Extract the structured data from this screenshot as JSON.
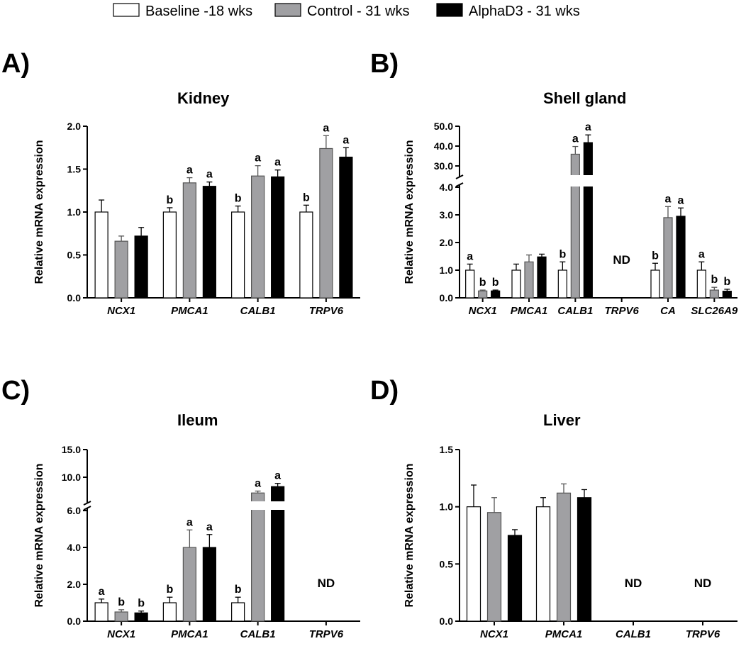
{
  "legend": [
    {
      "label": "Baseline -18 wks",
      "color": "#ffffff"
    },
    {
      "label": "Control - 31 wks",
      "color": "#a0a0a3"
    },
    {
      "label": "AlphaD3 - 31 wks",
      "color": "#000000"
    }
  ],
  "chart_data": [
    {
      "panel": "A)",
      "type": "bar",
      "title": "Kidney",
      "ylabel": "Relative mRNA expression",
      "ylim": [
        0,
        2.0
      ],
      "yticks": [
        "0.0",
        "0.5",
        "1.0",
        "1.5",
        "2.0"
      ],
      "categories": [
        "NCX1",
        "PMCA1",
        "CALB1",
        "TRPV6"
      ],
      "series": [
        {
          "name": "Baseline -18 wks",
          "values": [
            1.0,
            1.0,
            1.0,
            1.0
          ],
          "errors": [
            0.14,
            0.05,
            0.07,
            0.08
          ],
          "letters": [
            "",
            "b",
            "b",
            "b"
          ]
        },
        {
          "name": "Control - 31 wks",
          "values": [
            0.66,
            1.34,
            1.42,
            1.74
          ],
          "errors": [
            0.06,
            0.06,
            0.12,
            0.15
          ],
          "letters": [
            "",
            "a",
            "a",
            "a"
          ]
        },
        {
          "name": "AlphaD3 - 31 wks",
          "values": [
            0.72,
            1.3,
            1.41,
            1.64
          ],
          "errors": [
            0.1,
            0.05,
            0.08,
            0.11
          ],
          "letters": [
            "",
            "a",
            "a",
            "a"
          ]
        }
      ],
      "nd": []
    },
    {
      "panel": "B)",
      "type": "bar",
      "title": "Shell gland",
      "ylabel": "Relative mRNA expression",
      "broken_axis": {
        "lower": [
          0,
          4.0
        ],
        "upper": [
          25.0,
          50.0
        ]
      },
      "yticks": [
        "0.0",
        "1.0",
        "2.0",
        "3.0",
        "4.0",
        "30.0",
        "40.0",
        "50.0"
      ],
      "categories": [
        "NCX1",
        "PMCA1",
        "CALB1",
        "TRPV6",
        "CA",
        "SLC26A9"
      ],
      "series": [
        {
          "name": "Baseline -18 wks",
          "values": [
            1.0,
            1.0,
            1.0,
            null,
            1.0,
            1.0
          ],
          "errors": [
            0.22,
            0.22,
            0.3,
            null,
            0.25,
            0.3
          ],
          "letters": [
            "a",
            "",
            "b",
            "",
            "b",
            "a"
          ]
        },
        {
          "name": "Control - 31 wks",
          "values": [
            0.25,
            1.3,
            35.5,
            null,
            2.9,
            0.28
          ],
          "errors": [
            0.03,
            0.25,
            4.0,
            null,
            0.4,
            0.1
          ],
          "letters": [
            "b",
            "",
            "a",
            "",
            "a",
            "b"
          ]
        },
        {
          "name": "AlphaD3 - 31 wks",
          "values": [
            0.25,
            1.48,
            41.5,
            null,
            2.95,
            0.24
          ],
          "errors": [
            0.03,
            0.1,
            4.0,
            null,
            0.3,
            0.07
          ],
          "letters": [
            "b",
            "",
            "a",
            "",
            "a",
            "b"
          ]
        }
      ],
      "nd": [
        "TRPV6"
      ]
    },
    {
      "panel": "C)",
      "type": "bar",
      "title": "Ileum",
      "ylabel": "Relative mRNA expression",
      "broken_axis": {
        "lower": [
          0,
          6.0
        ],
        "upper": [
          7.0,
          15.0
        ]
      },
      "yticks": [
        "0.0",
        "2.0",
        "4.0",
        "6.0",
        "10.0",
        "15.0"
      ],
      "categories": [
        "NCX1",
        "PMCA1",
        "CALB1",
        "TRPV6"
      ],
      "series": [
        {
          "name": "Baseline -18 wks",
          "values": [
            1.0,
            1.0,
            1.0,
            null
          ],
          "errors": [
            0.2,
            0.3,
            0.3,
            null
          ],
          "letters": [
            "a",
            "b",
            "b",
            ""
          ]
        },
        {
          "name": "Control - 31 wks",
          "values": [
            0.5,
            4.0,
            8.2,
            null
          ],
          "errors": [
            0.12,
            0.95,
            0.3,
            null
          ],
          "letters": [
            "b",
            "a",
            "a",
            ""
          ]
        },
        {
          "name": "AlphaD3 - 31 wks",
          "values": [
            0.45,
            4.0,
            9.2,
            null
          ],
          "errors": [
            0.1,
            0.7,
            0.5,
            null
          ],
          "letters": [
            "b",
            "a",
            "a",
            ""
          ]
        }
      ],
      "nd": [
        "TRPV6"
      ]
    },
    {
      "panel": "D)",
      "type": "bar",
      "title": "Liver",
      "ylabel": "Relative mRNA expression",
      "ylim": [
        0,
        1.5
      ],
      "yticks": [
        "0.0",
        "0.5",
        "1.0",
        "1.5"
      ],
      "categories": [
        "NCX1",
        "PMCA1",
        "CALB1",
        "TRPV6"
      ],
      "series": [
        {
          "name": "Baseline -18 wks",
          "values": [
            1.0,
            1.0,
            null,
            null
          ],
          "errors": [
            0.19,
            0.08,
            null,
            null
          ],
          "letters": [
            "",
            "",
            "",
            ""
          ]
        },
        {
          "name": "Control - 31 wks",
          "values": [
            0.95,
            1.12,
            null,
            null
          ],
          "errors": [
            0.13,
            0.08,
            null,
            null
          ],
          "letters": [
            "",
            "",
            "",
            ""
          ]
        },
        {
          "name": "AlphaD3 - 31 wks",
          "values": [
            0.75,
            1.08,
            null,
            null
          ],
          "errors": [
            0.05,
            0.07,
            null,
            null
          ],
          "letters": [
            "",
            "",
            "",
            ""
          ]
        }
      ],
      "nd": [
        "CALB1",
        "TRPV6"
      ],
      "nd_label": "ND"
    }
  ]
}
